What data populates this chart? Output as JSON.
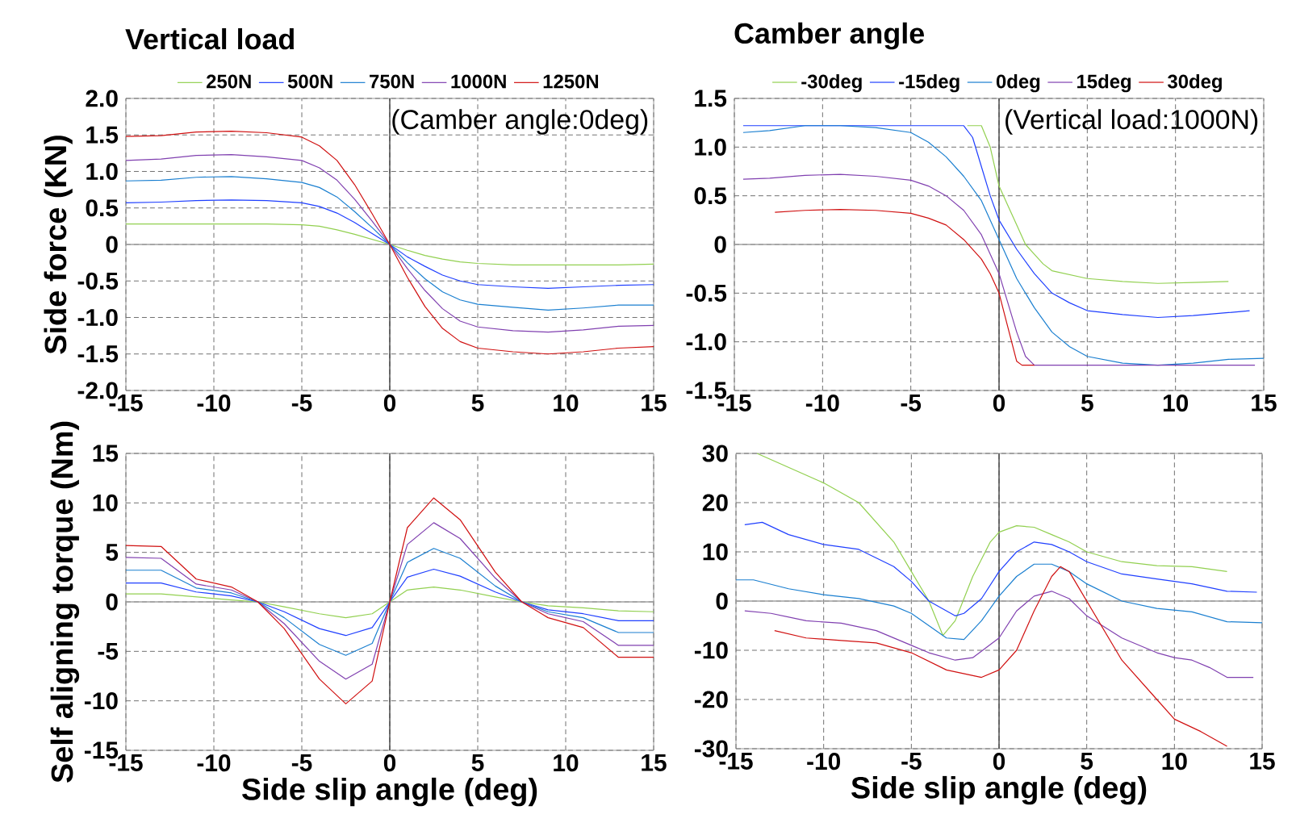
{
  "chart_data": [
    {
      "type": "line",
      "title": "Vertical load",
      "ylabel": "Side force (KN)",
      "annotations": [
        "(Camber angle:0deg)"
      ],
      "x": [
        -15,
        -13,
        -11,
        -9,
        -7,
        -5,
        -4,
        -3,
        -2,
        -1,
        0,
        1,
        2,
        3,
        4,
        5,
        7,
        9,
        11,
        13,
        15
      ],
      "series": [
        {
          "name": "250N",
          "color": "#92d050",
          "values": [
            0.28,
            0.28,
            0.28,
            0.28,
            0.28,
            0.27,
            0.25,
            0.2,
            0.14,
            0.07,
            0,
            -0.08,
            -0.15,
            -0.2,
            -0.24,
            -0.26,
            -0.28,
            -0.28,
            -0.28,
            -0.28,
            -0.27
          ]
        },
        {
          "name": "500N",
          "color": "#1f3fff",
          "values": [
            0.57,
            0.58,
            0.6,
            0.61,
            0.6,
            0.57,
            0.52,
            0.43,
            0.3,
            0.15,
            0,
            -0.17,
            -0.3,
            -0.42,
            -0.5,
            -0.55,
            -0.58,
            -0.6,
            -0.58,
            -0.56,
            -0.55
          ]
        },
        {
          "name": "750N",
          "color": "#1a7fd0",
          "values": [
            0.87,
            0.88,
            0.92,
            0.93,
            0.9,
            0.85,
            0.78,
            0.65,
            0.45,
            0.23,
            0,
            -0.25,
            -0.47,
            -0.65,
            -0.76,
            -0.82,
            -0.86,
            -0.9,
            -0.87,
            -0.83,
            -0.83
          ]
        },
        {
          "name": "1000N",
          "color": "#8040b0",
          "values": [
            1.15,
            1.17,
            1.22,
            1.23,
            1.2,
            1.15,
            1.05,
            0.88,
            0.62,
            0.32,
            0,
            -0.33,
            -0.63,
            -0.88,
            -1.05,
            -1.13,
            -1.18,
            -1.2,
            -1.17,
            -1.12,
            -1.11
          ]
        },
        {
          "name": "1250N",
          "color": "#d01010",
          "values": [
            1.48,
            1.49,
            1.54,
            1.55,
            1.53,
            1.47,
            1.35,
            1.15,
            0.82,
            0.42,
            0,
            -0.45,
            -0.85,
            -1.15,
            -1.33,
            -1.42,
            -1.47,
            -1.5,
            -1.47,
            -1.42,
            -1.4
          ]
        }
      ],
      "xlim": [
        -15,
        15
      ],
      "xticks": [
        -15,
        -10,
        -5,
        0,
        5,
        10,
        15
      ],
      "ylim": [
        -2,
        2
      ],
      "yticks": [
        {
          "value": -2,
          "label": "-2.0"
        },
        -1.5,
        {
          "value": -1,
          "label": "-1.0"
        },
        -0.5,
        0,
        0.5,
        {
          "value": 1,
          "label": "1.0"
        },
        1.5,
        {
          "value": 2,
          "label": "2.0"
        }
      ],
      "ref_lines": [
        {
          "axis": "y",
          "value": 0,
          "color": "#a0a0a0"
        },
        {
          "axis": "x",
          "value": 0,
          "color": "#404040"
        }
      ],
      "grid": true,
      "legend": "top"
    },
    {
      "type": "line",
      "title": "Camber angle",
      "annotations": [
        "(Vertical load:1000N)"
      ],
      "series": [
        {
          "name": "-30deg",
          "color": "#92d050",
          "x": [
            -1.8,
            -1,
            -0.5,
            0,
            0.5,
            1,
            1.5,
            2,
            2.5,
            3,
            5,
            7,
            9,
            11,
            13
          ],
          "values": [
            1.22,
            1.22,
            1.0,
            0.6,
            0.4,
            0.2,
            0,
            -0.1,
            -0.2,
            -0.27,
            -0.35,
            -0.38,
            -0.4,
            -0.39,
            -0.38
          ]
        },
        {
          "name": "-15deg",
          "color": "#1f3fff",
          "x": [
            -14.5,
            -12,
            -10,
            -8,
            -6,
            -4,
            -2,
            -1.5,
            -1,
            -0.5,
            0,
            1,
            2,
            3,
            4,
            5,
            7,
            9,
            11,
            13,
            14.2
          ],
          "values": [
            1.22,
            1.22,
            1.22,
            1.22,
            1.22,
            1.22,
            1.22,
            1.1,
            0.8,
            0.5,
            0.25,
            -0.05,
            -0.3,
            -0.5,
            -0.6,
            -0.68,
            -0.72,
            -0.75,
            -0.73,
            -0.7,
            -0.68
          ]
        },
        {
          "name": "0deg",
          "color": "#1a7fd0",
          "x": [
            -14.5,
            -13,
            -11,
            -9,
            -7,
            -5,
            -4,
            -3,
            -2,
            -1,
            0,
            1,
            2,
            3,
            4,
            5,
            7,
            9,
            11,
            13,
            15
          ],
          "values": [
            1.15,
            1.17,
            1.22,
            1.22,
            1.2,
            1.15,
            1.05,
            0.9,
            0.7,
            0.45,
            0.05,
            -0.35,
            -0.65,
            -0.9,
            -1.05,
            -1.15,
            -1.22,
            -1.24,
            -1.22,
            -1.18,
            -1.17
          ]
        },
        {
          "name": "15deg",
          "color": "#8040b0",
          "x": [
            -14.5,
            -13,
            -11,
            -9,
            -7,
            -5,
            -4,
            -3,
            -2,
            -1,
            -0.5,
            0,
            0.5,
            1,
            1.5,
            2,
            5,
            10,
            14.5
          ],
          "values": [
            0.67,
            0.68,
            0.71,
            0.72,
            0.7,
            0.66,
            0.6,
            0.5,
            0.35,
            0.1,
            -0.1,
            -0.3,
            -0.6,
            -0.9,
            -1.15,
            -1.24,
            -1.24,
            -1.24,
            -1.24
          ]
        },
        {
          "name": "30deg",
          "color": "#d01010",
          "x": [
            -12.7,
            -11,
            -9,
            -7,
            -5,
            -4,
            -3,
            -2,
            -1,
            -0.5,
            0,
            0.5,
            1,
            1.3,
            2
          ],
          "values": [
            0.33,
            0.35,
            0.36,
            0.35,
            0.32,
            0.27,
            0.2,
            0.05,
            -0.15,
            -0.3,
            -0.5,
            -0.85,
            -1.2,
            -1.24,
            -1.24
          ]
        }
      ],
      "xlim": [
        -15,
        15
      ],
      "xticks": [
        -15,
        -10,
        -5,
        0,
        5,
        10,
        15
      ],
      "ylim": [
        -1.5,
        1.5
      ],
      "yticks": [
        -1.5,
        {
          "value": -1,
          "label": "-1.0"
        },
        -0.5,
        0,
        0.5,
        {
          "value": 1,
          "label": "1.0"
        },
        1.5
      ],
      "ref_lines": [
        {
          "axis": "y",
          "value": 0,
          "color": "#a0a0a0"
        },
        {
          "axis": "x",
          "value": 0,
          "color": "#404040"
        }
      ],
      "grid": true,
      "legend": "top"
    },
    {
      "type": "line",
      "ylabel": "Self aligning torque (Nm)",
      "xlabel": "Side slip angle (deg)",
      "x": [
        -15,
        -13,
        -11,
        -9,
        -7.5,
        -6,
        -4,
        -2.5,
        -1,
        0,
        1,
        2.5,
        4,
        6,
        7.5,
        9,
        11,
        13,
        15
      ],
      "series": [
        {
          "color": "#92d050",
          "values": [
            0.8,
            0.8,
            0.5,
            0.2,
            0,
            -0.5,
            -1.2,
            -1.6,
            -1.2,
            0,
            1.2,
            1.5,
            1.2,
            0.5,
            0,
            -0.4,
            -0.6,
            -0.9,
            -1.0
          ]
        },
        {
          "color": "#1f3fff",
          "values": [
            1.9,
            1.9,
            1.0,
            0.6,
            0,
            -1.0,
            -2.7,
            -3.4,
            -2.6,
            0,
            2.5,
            3.3,
            2.6,
            1.0,
            0,
            -0.8,
            -1.2,
            -1.9,
            -1.9
          ]
        },
        {
          "color": "#1a7fd0",
          "values": [
            3.2,
            3.2,
            1.4,
            0.9,
            0,
            -1.6,
            -4.3,
            -5.4,
            -4.2,
            0,
            4,
            5.4,
            4.4,
            1.6,
            0,
            -1.0,
            -1.6,
            -3.1,
            -3.1
          ]
        },
        {
          "color": "#8040b0",
          "values": [
            4.5,
            4.4,
            1.8,
            1.2,
            0,
            -2.2,
            -6.0,
            -7.8,
            -6.3,
            0,
            5.8,
            8.0,
            6.4,
            2.4,
            0,
            -1.2,
            -2.0,
            -4.4,
            -4.4
          ]
        },
        {
          "color": "#d01010",
          "values": [
            5.7,
            5.6,
            2.3,
            1.5,
            0,
            -2.7,
            -7.8,
            -10.3,
            -8,
            0,
            7.5,
            10.5,
            8.3,
            3.0,
            0,
            -1.6,
            -2.6,
            -5.6,
            -5.6
          ]
        }
      ],
      "xlim": [
        -15,
        15
      ],
      "xticks": [
        -15,
        -10,
        -5,
        0,
        5,
        10,
        15
      ],
      "ylim": [
        -15,
        15
      ],
      "yticks": [
        -15,
        -10,
        -5,
        0,
        5,
        10,
        15
      ],
      "ref_lines": [
        {
          "axis": "y",
          "value": 0,
          "color": "#a0a0a0"
        },
        {
          "axis": "x",
          "value": 0,
          "color": "#404040"
        }
      ],
      "grid": true
    },
    {
      "type": "line",
      "xlabel": "Side slip angle (deg)",
      "series": [
        {
          "color": "#92d050",
          "x": [
            -13.8,
            -10,
            -8,
            -6,
            -5,
            -4,
            -3.2,
            -2.5,
            -1.5,
            -0.5,
            0,
            1,
            2,
            3,
            4,
            5,
            7,
            9,
            11,
            13
          ],
          "values": [
            30,
            24,
            20,
            12,
            6,
            0,
            -7,
            -4,
            5,
            12,
            14,
            15.3,
            15,
            13.5,
            12,
            10,
            8,
            7.2,
            7,
            6
          ]
        },
        {
          "color": "#1f3fff",
          "x": [
            -14.5,
            -13.5,
            -12,
            -10,
            -8,
            -6,
            -5,
            -4,
            -3,
            -2.5,
            -2,
            -1,
            0,
            1,
            2,
            3,
            4,
            5,
            7,
            9,
            11,
            13,
            14.7
          ],
          "values": [
            15.5,
            16,
            13.5,
            11.5,
            10.5,
            7,
            4,
            0,
            -2,
            -3,
            -2.5,
            0.5,
            6,
            10,
            12,
            11.5,
            10,
            8,
            5.5,
            4.5,
            3.5,
            2,
            1.8
          ]
        },
        {
          "color": "#1a7fd0",
          "x": [
            -15,
            -14,
            -12,
            -10,
            -8,
            -6,
            -5,
            -4,
            -3,
            -2,
            -1,
            0,
            1,
            2,
            3,
            4,
            5,
            7,
            9,
            11,
            13,
            15
          ],
          "values": [
            4.3,
            4.3,
            2.5,
            1.3,
            0.5,
            -1,
            -2.5,
            -5,
            -7.5,
            -7.8,
            -4,
            1,
            5,
            7.5,
            7.5,
            6,
            3.5,
            0,
            -1.5,
            -2.2,
            -4.2,
            -4.4
          ]
        },
        {
          "color": "#8040b0",
          "x": [
            -14.5,
            -13,
            -11,
            -9,
            -7,
            -5,
            -4,
            -2.5,
            -1.5,
            0,
            1,
            2,
            3,
            4,
            5,
            7,
            9,
            10,
            11,
            12,
            13,
            14.5
          ],
          "values": [
            -2,
            -2.5,
            -4,
            -4.5,
            -6,
            -9,
            -10.5,
            -12,
            -11.5,
            -7.5,
            -2,
            1,
            2,
            0.5,
            -3,
            -7.5,
            -10.5,
            -11.5,
            -12,
            -13.5,
            -15.5,
            -15.5
          ]
        },
        {
          "color": "#d01010",
          "x": [
            -12.8,
            -11,
            -9,
            -7,
            -5,
            -3,
            -1,
            0,
            1,
            2,
            3,
            3.5,
            4,
            5,
            7,
            9,
            10,
            11.5,
            13
          ],
          "values": [
            -6,
            -7.5,
            -8,
            -8.5,
            -10.5,
            -14,
            -15.5,
            -14,
            -10,
            -2,
            5,
            7,
            6,
            0,
            -12,
            -20,
            -24,
            -26.5,
            -29.5
          ]
        }
      ],
      "xlim": [
        -15,
        15
      ],
      "xticks": [
        -15,
        -10,
        -5,
        0,
        5,
        10,
        15
      ],
      "ylim": [
        -30,
        30
      ],
      "yticks": [
        -30,
        -20,
        -10,
        0,
        10,
        20,
        30
      ],
      "ref_lines": [
        {
          "axis": "y",
          "value": 0,
          "color": "#a0a0a0"
        },
        {
          "axis": "x",
          "value": 0,
          "color": "#404040"
        }
      ],
      "grid": true
    }
  ]
}
